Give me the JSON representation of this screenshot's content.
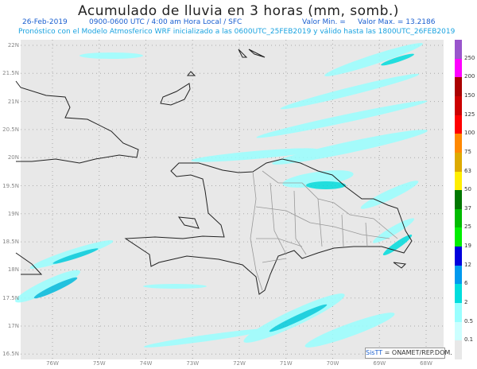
{
  "header": {
    "title": "Acumulado de lluvia en 3 horas (mm, somb.)",
    "date": "26-Feb-2019",
    "period": "0900-0600 UTC / 4:00 am Hora Local / SFC",
    "min_label": "Valor Min. =",
    "max_label": "Valor Max. = 13.2186",
    "forecast": "Pronóstico con el Modelo Atmosferico WRF inicializado a las 0600UTC_25FEB2019 y válido hasta las  1800UTC_26FEB2019"
  },
  "map": {
    "lat_labels": [
      "22N",
      "21.5N",
      "21N",
      "20.5N",
      "20N",
      "19.5N",
      "19N",
      "18.5N",
      "18N",
      "17.5N",
      "17N",
      "16.5N"
    ],
    "lon_labels": [
      "76W",
      "75W",
      "74W",
      "73W",
      "72W",
      "71W",
      "70W",
      "69W",
      "68W"
    ],
    "background": "#e8e8e8"
  },
  "colorbar": {
    "labels": [
      "250",
      "200",
      "150",
      "125",
      "100",
      "75",
      "63",
      "50",
      "37",
      "25",
      "19",
      "12",
      "6",
      "2",
      "0.5",
      "0.1"
    ],
    "colors": [
      "#9955cc",
      "#ff00ff",
      "#aa0000",
      "#cc0000",
      "#ff0000",
      "#ff8800",
      "#ddaa00",
      "#ffee00",
      "#007700",
      "#00bb00",
      "#00ee00",
      "#0000dd",
      "#0099ee",
      "#00dddd",
      "#99ffff",
      "#ccffff",
      "#e8e8e8"
    ]
  },
  "credit": {
    "sistt": "SisTT",
    "org": " = ONAMET/REP.DOM."
  }
}
